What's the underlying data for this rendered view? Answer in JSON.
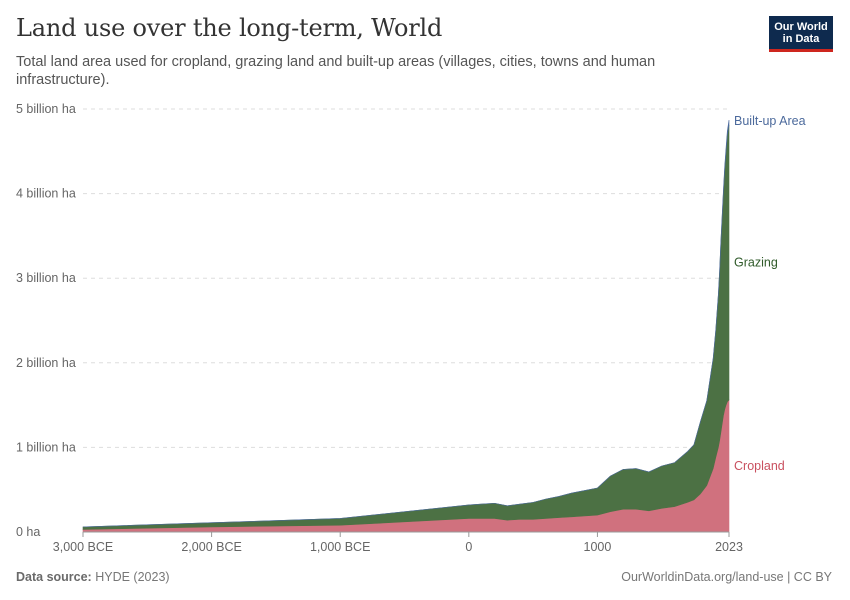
{
  "header": {
    "title": "Land use over the long-term, World",
    "subtitle": "Total land area used for cropland, grazing land and built-up areas (villages, cities, towns and human infrastructure).",
    "logo_line1": "Our World",
    "logo_line2": "in Data"
  },
  "footer": {
    "source_label": "Data source:",
    "source_value": "HYDE (2023)",
    "credit": "OurWorldinData.org/land-use | CC BY"
  },
  "chart_data": {
    "type": "area",
    "stacked": true,
    "grid": true,
    "x_ticks": [
      {
        "value": -3000,
        "label": "3,000 BCE"
      },
      {
        "value": -2000,
        "label": "2,000 BCE"
      },
      {
        "value": -1000,
        "label": "1,000 BCE"
      },
      {
        "value": 0,
        "label": "0"
      },
      {
        "value": 1000,
        "label": "1000"
      },
      {
        "value": 2023,
        "label": "2023"
      }
    ],
    "y_ticks": [
      {
        "value": 0,
        "label": "0 ha"
      },
      {
        "value": 1,
        "label": "1 billion ha"
      },
      {
        "value": 2,
        "label": "2 billion ha"
      },
      {
        "value": 3,
        "label": "3 billion ha"
      },
      {
        "value": 4,
        "label": "4 billion ha"
      },
      {
        "value": 5,
        "label": "5 billion ha"
      }
    ],
    "xlim": [
      -3000,
      2023
    ],
    "ylim": [
      0,
      5
    ],
    "x": [
      -3000,
      -2000,
      -1000,
      0,
      100,
      200,
      300,
      400,
      500,
      600,
      700,
      800,
      900,
      1000,
      1100,
      1200,
      1300,
      1400,
      1500,
      1600,
      1700,
      1750,
      1800,
      1850,
      1900,
      1920,
      1940,
      1950,
      1960,
      1970,
      1980,
      1990,
      2000,
      2010,
      2023
    ],
    "series": [
      {
        "name": "Cropland",
        "color": "#d0717e",
        "values": [
          0.03,
          0.06,
          0.08,
          0.16,
          0.16,
          0.16,
          0.14,
          0.15,
          0.15,
          0.16,
          0.17,
          0.18,
          0.19,
          0.2,
          0.24,
          0.27,
          0.27,
          0.25,
          0.28,
          0.3,
          0.35,
          0.38,
          0.45,
          0.55,
          0.75,
          0.88,
          1.0,
          1.08,
          1.18,
          1.28,
          1.38,
          1.45,
          1.5,
          1.54,
          1.56
        ]
      },
      {
        "name": "Grazing",
        "color": "#4c7144",
        "values": [
          0.03,
          0.05,
          0.08,
          0.16,
          0.17,
          0.18,
          0.17,
          0.18,
          0.2,
          0.23,
          0.25,
          0.28,
          0.3,
          0.32,
          0.42,
          0.47,
          0.48,
          0.46,
          0.5,
          0.52,
          0.6,
          0.65,
          0.85,
          1.0,
          1.3,
          1.5,
          1.8,
          2.0,
          2.25,
          2.45,
          2.65,
          2.85,
          3.0,
          3.15,
          3.25
        ]
      },
      {
        "name": "Built-up Area",
        "color": "#4c6a9c",
        "values": [
          0,
          0,
          0,
          0,
          0,
          0,
          0,
          0,
          0,
          0,
          0,
          0,
          0,
          0,
          0,
          0,
          0,
          0,
          0,
          0,
          0,
          0,
          0.001,
          0.002,
          0.005,
          0.007,
          0.01,
          0.012,
          0.016,
          0.02,
          0.025,
          0.03,
          0.04,
          0.05,
          0.06
        ]
      }
    ],
    "legend": [
      {
        "name": "Built-up Area",
        "color": "#4c6a9c"
      },
      {
        "name": "Grazing",
        "color": "#2f5a29"
      },
      {
        "name": "Cropland",
        "color": "#c9505f"
      }
    ]
  }
}
